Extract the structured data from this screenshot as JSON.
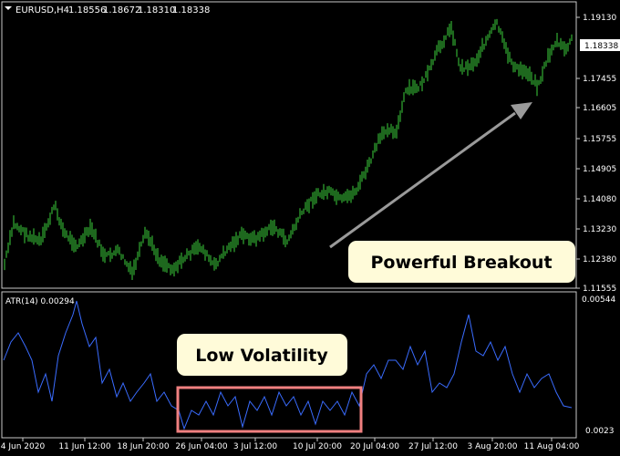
{
  "chart": {
    "symbol_label": "EURUSD,H4",
    "ohlc": [
      "1.18556",
      "1.18672",
      "1.18310",
      "1.18338"
    ],
    "current_price": "1.18338",
    "price_ticks": [
      "1.19130",
      "1.17455",
      "1.16605",
      "1.15755",
      "1.14905",
      "1.14080",
      "1.13230",
      "1.12380",
      "1.11555"
    ],
    "atr_label": "ATR(14) 0.00294",
    "atr_ticks": [
      "0.00544",
      "0.0023"
    ],
    "time_ticks": [
      "4 Jun 2020",
      "11 Jun 12:00",
      "18 Jun 20:00",
      "26 Jun 04:00",
      "3 Jul 12:00",
      "10 Jul 20:00",
      "20 Jul 04:00",
      "27 Jul 12:00",
      "3 Aug 20:00",
      "11 Aug 04:00"
    ],
    "colors": {
      "bars": "#3bd13b",
      "atr_line": "#3a6cff",
      "axis": "#c8c8c8",
      "arrow": "#9a9a9a",
      "callout_bg": "#fffbd9",
      "highlight_box": "#f08080",
      "price_tag_bg": "#ffffff"
    }
  },
  "annotations": {
    "breakout": "Powerful Breakout",
    "low_volatility": "Low Volatility"
  }
}
